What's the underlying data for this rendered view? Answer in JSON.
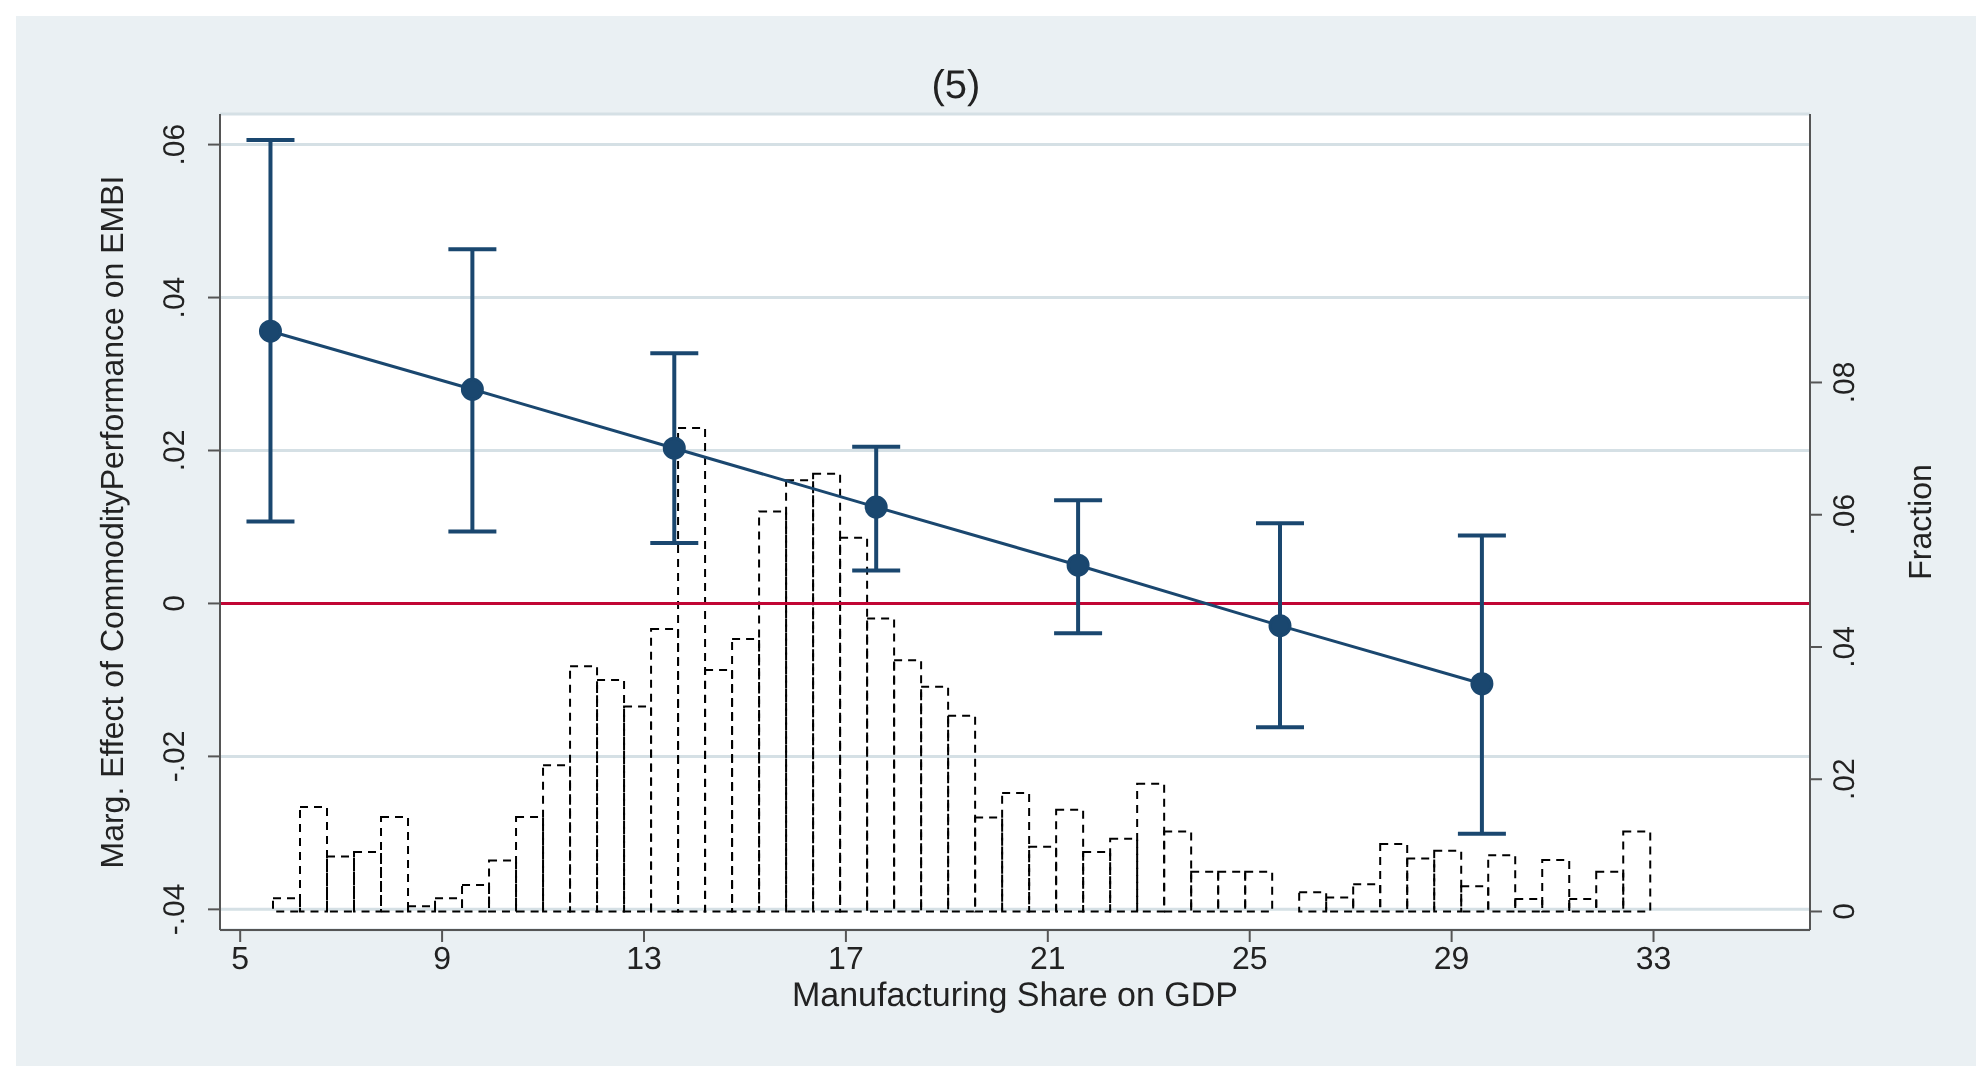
{
  "chart_data": {
    "type": "line",
    "title": "(5)",
    "xlabel": "Manufacturing Share on GDP",
    "ylabel": "Marg. Effect of CommodityPerformance on EMBI",
    "y2label": "Fraction",
    "xlim": [
      4.6,
      36.1
    ],
    "xticks": [
      5,
      9,
      13,
      17,
      21,
      25,
      29,
      33
    ],
    "ylim": [
      -0.0427,
      0.064
    ],
    "yticks": [
      {
        "value": -0.04,
        "label": "-.04"
      },
      {
        "value": -0.02,
        "label": "-.02"
      },
      0,
      {
        "value": 0.02,
        "label": ".02"
      },
      {
        "value": 0.04,
        "label": ".04"
      },
      {
        "value": 0.06,
        "label": ".06"
      }
    ],
    "y2lim": [
      -0.0028,
      0.1206
    ],
    "y2ticks": [
      0,
      {
        "value": 0.02,
        "label": ".02"
      },
      {
        "value": 0.04,
        "label": ".04"
      },
      {
        "value": 0.06,
        "label": ".06"
      },
      {
        "value": 0.08,
        "label": ".08"
      }
    ],
    "grid": "y",
    "legend": false,
    "ref_lines": [
      {
        "axis": "y",
        "value": 0,
        "color": "#c10534"
      }
    ],
    "series": [
      {
        "color": "#1a476f",
        "marker": "circle",
        "x": [
          5.6,
          9.6,
          13.6,
          17.6,
          21.6,
          25.6,
          29.6
        ],
        "values": [
          0.0356,
          0.028,
          0.0203,
          0.0126,
          0.005,
          -0.0029,
          -0.0105
        ],
        "errors": [
          [
            0.0107,
            0.0606
          ],
          [
            0.0094,
            0.0463
          ],
          [
            0.0079,
            0.0327
          ],
          [
            0.0043,
            0.0205
          ],
          [
            -0.0039,
            0.0135
          ],
          [
            -0.0162,
            0.0105
          ],
          [
            -0.0301,
            0.0089
          ]
        ]
      },
      {
        "type": "histogram",
        "axis": "y2",
        "color": "#000000",
        "line_style": "dashed",
        "bins": [
          5.65,
          6.185,
          6.72,
          7.255,
          7.79,
          8.325,
          8.86,
          9.395,
          9.93,
          10.465,
          11.0,
          11.535,
          12.07,
          12.605,
          13.14,
          13.675,
          14.21,
          14.745,
          15.28,
          15.815,
          16.35,
          16.885,
          17.42,
          17.955,
          18.49,
          19.025,
          19.56,
          20.095,
          20.63,
          21.165,
          21.7,
          22.235,
          22.77,
          23.305,
          23.84,
          24.375,
          24.91,
          25.445,
          25.98,
          26.515,
          27.05,
          27.585,
          28.12,
          28.655,
          29.19,
          29.725,
          30.26,
          30.795,
          31.33,
          31.865,
          32.4,
          32.935
        ],
        "values": [
          0.002,
          0.0158,
          0.0083,
          0.009,
          0.0143,
          0.0008,
          0.002,
          0.004,
          0.0077,
          0.0143,
          0.0221,
          0.0371,
          0.035,
          0.031,
          0.0427,
          0.0731,
          0.0365,
          0.0412,
          0.0605,
          0.0652,
          0.0662,
          0.0565,
          0.0443,
          0.038,
          0.034,
          0.0296,
          0.0142,
          0.0179,
          0.0098,
          0.0154,
          0.009,
          0.011,
          0.0193,
          0.0121,
          0.006,
          0.006,
          0.006,
          0,
          0.0029,
          0.0021,
          0.0041,
          0.0102,
          0.008,
          0.0092,
          0.0038,
          0.0085,
          0.0019,
          0.0078,
          0.0019,
          0.006,
          0.0121
        ]
      }
    ]
  }
}
